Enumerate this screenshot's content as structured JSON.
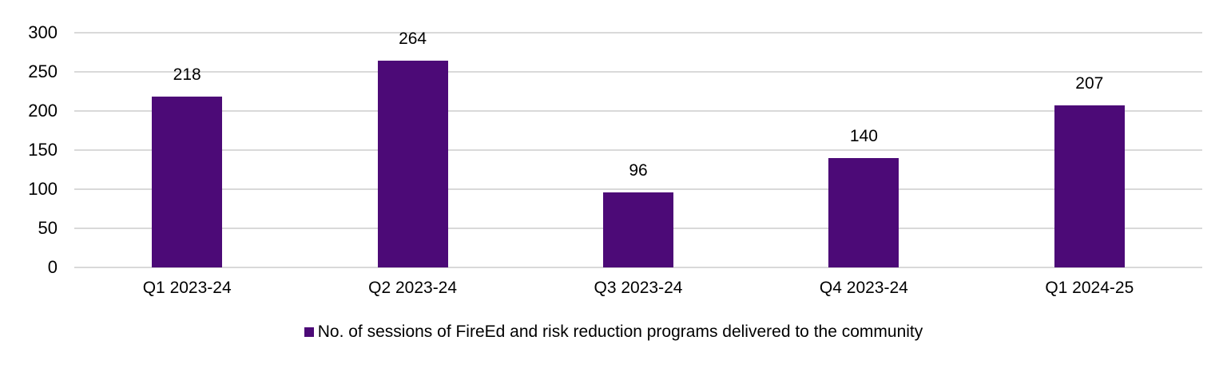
{
  "chart_data": {
    "type": "bar",
    "categories": [
      "Q1 2023-24",
      "Q2 2023-24",
      "Q3 2023-24",
      "Q4 2023-24",
      "Q1 2024-25"
    ],
    "values": [
      218,
      264,
      96,
      140,
      207
    ],
    "series_name": "No. of sessions of FireEd and risk reduction programs delivered to the community",
    "title": "",
    "xlabel": "",
    "ylabel": "",
    "ylim": [
      0,
      300
    ],
    "yticks": [
      0,
      50,
      100,
      150,
      200,
      250,
      300
    ],
    "grid": "horizontal",
    "legend_position": "bottom-center",
    "bar_color": "#4C0A77",
    "gridline_color": "#D9D9D9",
    "text_color": "#000000"
  }
}
